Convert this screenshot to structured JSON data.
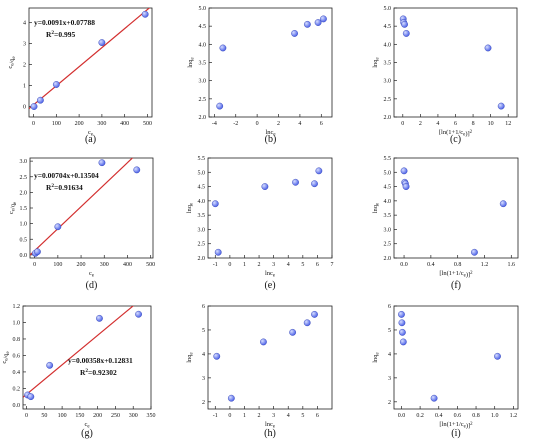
{
  "figure": {
    "colors": {
      "point": "#4e63e8",
      "point_highlight": "#d6ddff",
      "fit_line": "#d32f2f",
      "axis": "#222222"
    },
    "panels": [
      {
        "id": "a",
        "caption": "(a)",
        "chart_data": {
          "type": "scatter",
          "xlabel": "c_e",
          "ylabel": "c_e/q_e",
          "xlim": [
            -20,
            520
          ],
          "ylim": [
            -0.5,
            4.7
          ],
          "xticks": [
            "0",
            "100",
            "200",
            "300",
            "400",
            "500"
          ],
          "yticks": [
            "0",
            "1",
            "2",
            "3",
            "4"
          ],
          "x": [
            2,
            30,
            100,
            300,
            490
          ],
          "y": [
            0.0,
            0.3,
            1.05,
            3.05,
            4.4
          ],
          "fit": {
            "slope": 0.0091,
            "intercept": 0.07788,
            "equation": "y=0.0091x+0.07788",
            "r2_label": "R",
            "r2_value": "=0.995"
          }
        }
      },
      {
        "id": "b",
        "caption": "(b)",
        "chart_data": {
          "type": "scatter",
          "xlabel": "lnc_e",
          "ylabel": "lnq_e",
          "xlim": [
            -4.5,
            7
          ],
          "ylim": [
            2.0,
            5.0
          ],
          "xticks": [
            "-4",
            "-2",
            "0",
            "2",
            "4",
            "6"
          ],
          "yticks": [
            "2.0",
            "2.5",
            "3.0",
            "3.5",
            "4.0",
            "4.5",
            "5.0"
          ],
          "x": [
            -3.5,
            -3.2,
            3.5,
            4.7,
            5.7,
            6.2
          ],
          "y": [
            2.3,
            3.9,
            4.3,
            4.55,
            4.6,
            4.7
          ]
        }
      },
      {
        "id": "c",
        "caption": "(c)",
        "chart_data": {
          "type": "scatter",
          "xlabel": "[ln(1+1/c_e)]^2",
          "ylabel": "lnq_e",
          "xlim": [
            -1,
            13
          ],
          "ylim": [
            2.0,
            5.0
          ],
          "xticks": [
            "0",
            "2",
            "4",
            "6",
            "8",
            "10",
            "12"
          ],
          "yticks": [
            "2.0",
            "2.5",
            "3.0",
            "3.5",
            "4.0",
            "4.5",
            "5.0"
          ],
          "x": [
            0.05,
            0.1,
            0.2,
            0.4,
            9.7,
            11.2
          ],
          "y": [
            4.7,
            4.6,
            4.55,
            4.3,
            3.9,
            2.3
          ]
        }
      },
      {
        "id": "d",
        "caption": "(d)",
        "chart_data": {
          "type": "scatter",
          "xlabel": "c_e",
          "ylabel": "c_e/q_e",
          "xlim": [
            -20,
            510
          ],
          "ylim": [
            -0.1,
            3.1
          ],
          "xticks": [
            "0",
            "100",
            "200",
            "300",
            "400",
            "500"
          ],
          "yticks": [
            "0.0",
            "0.5",
            "1.0",
            "1.5",
            "2.0",
            "2.5",
            "3.0"
          ],
          "x": [
            3,
            12,
            100,
            290,
            440
          ],
          "y": [
            0.05,
            0.1,
            0.9,
            2.95,
            2.72
          ],
          "fit": {
            "slope": 0.00704,
            "intercept": 0.13504,
            "equation": "y=0.00704x+0.13504",
            "r2_label": "R",
            "r2_value": "=0.91634"
          }
        }
      },
      {
        "id": "e",
        "caption": "(e)",
        "chart_data": {
          "type": "scatter",
          "xlabel": "lnc_e",
          "ylabel": "lnq_e",
          "xlim": [
            -1.5,
            7
          ],
          "ylim": [
            2.0,
            5.5
          ],
          "xticks": [
            "-1",
            "0",
            "1",
            "2",
            "3",
            "4",
            "5",
            "6",
            "7"
          ],
          "yticks": [
            "2.0",
            "2.5",
            "3.0",
            "3.5",
            "4.0",
            "4.5",
            "5.0",
            "5.5"
          ],
          "x": [
            -1.0,
            -0.8,
            2.4,
            4.5,
            5.8,
            6.1
          ],
          "y": [
            3.9,
            2.2,
            4.5,
            4.65,
            4.6,
            5.05
          ]
        }
      },
      {
        "id": "f",
        "caption": "(f)",
        "chart_data": {
          "type": "scatter",
          "xlabel": "[ln(1+1/c_e)]^2",
          "ylabel": "lnq_e",
          "xlim": [
            -0.15,
            1.7
          ],
          "ylim": [
            2.0,
            5.5
          ],
          "xticks": [
            "0.0",
            "0.4",
            "0.8",
            "1.2",
            "1.6"
          ],
          "yticks": [
            "2.0",
            "2.5",
            "3.0",
            "3.5",
            "4.0",
            "4.5",
            "5.0",
            "5.5"
          ],
          "x": [
            0.0,
            0.01,
            0.02,
            0.03,
            1.05,
            1.48
          ],
          "y": [
            5.05,
            4.65,
            4.6,
            4.5,
            2.2,
            3.9
          ]
        }
      },
      {
        "id": "g",
        "caption": "(g)",
        "chart_data": {
          "type": "scatter",
          "xlabel": "c_e",
          "ylabel": "c_e/q_e",
          "xlim": [
            -10,
            350
          ],
          "ylim": [
            -0.05,
            1.2
          ],
          "xticks": [
            "0",
            "50",
            "100",
            "150",
            "200",
            "250",
            "300",
            "350"
          ],
          "yticks": [
            "0.0",
            "0.2",
            "0.4",
            "0.6",
            "0.8",
            "1.0",
            "1.2"
          ],
          "x": [
            3,
            12,
            65,
            205,
            315
          ],
          "y": [
            0.12,
            0.1,
            0.48,
            1.05,
            1.1
          ],
          "fit": {
            "slope": 0.00358,
            "intercept": 0.12831,
            "equation": "y=0.00358x+0.12831",
            "r2_label": "R",
            "r2_value": "=0.92302"
          }
        }
      },
      {
        "id": "h",
        "caption": "(h)",
        "chart_data": {
          "type": "scatter",
          "xlabel": "lnc_e",
          "ylabel": "lnq_e",
          "xlim": [
            -1.5,
            7
          ],
          "ylim": [
            1.7,
            6.0
          ],
          "xticks": [
            "-1",
            "0",
            "1",
            "2",
            "3",
            "4",
            "5",
            "6"
          ],
          "yticks": [
            "2",
            "3",
            "4",
            "5",
            "6"
          ],
          "x": [
            -0.9,
            0.1,
            2.3,
            4.3,
            5.3,
            5.8
          ],
          "y": [
            3.9,
            2.15,
            4.5,
            4.9,
            5.3,
            5.65
          ]
        }
      },
      {
        "id": "i",
        "caption": "(i)",
        "chart_data": {
          "type": "scatter",
          "xlabel": "[ln(1+1/c_e)]^2",
          "ylabel": "lnq_e",
          "xlim": [
            -0.08,
            1.25
          ],
          "ylim": [
            1.7,
            6.0
          ],
          "xticks": [
            "0.0",
            "0.2",
            "0.4",
            "0.6",
            "0.8",
            "1.0",
            "1.2"
          ],
          "yticks": [
            "2",
            "3",
            "4",
            "5",
            "6"
          ],
          "x": [
            0.0,
            0.005,
            0.01,
            0.02,
            0.35,
            1.03
          ],
          "y": [
            5.65,
            5.3,
            4.9,
            4.5,
            2.15,
            3.9
          ]
        }
      }
    ]
  }
}
